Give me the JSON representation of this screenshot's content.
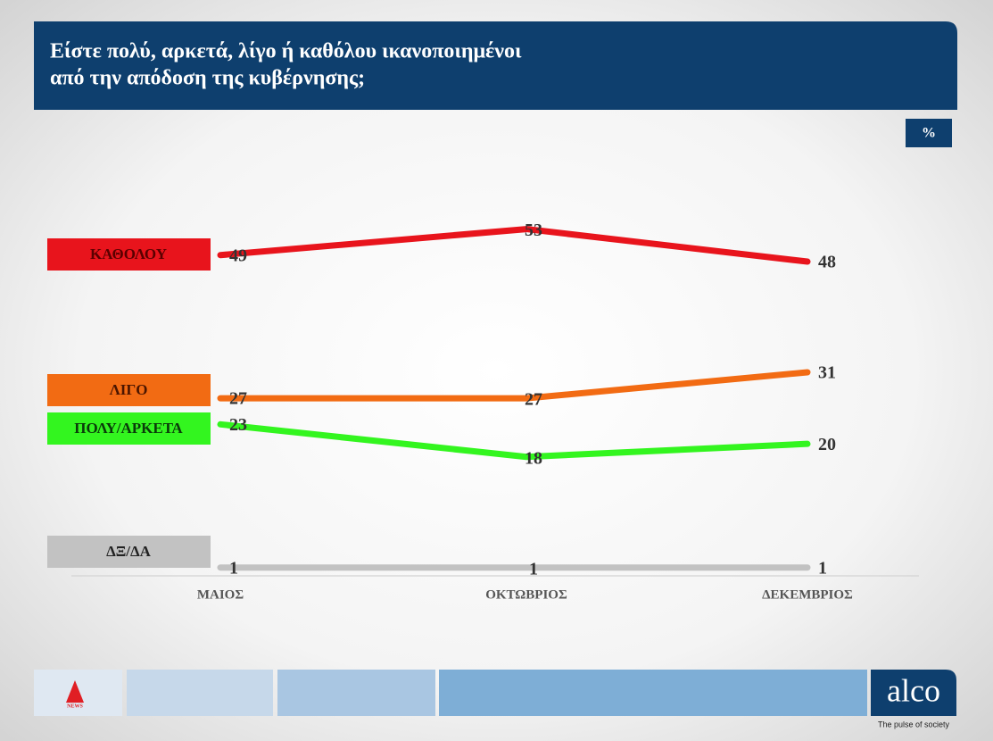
{
  "chart_data": {
    "type": "line",
    "title": [
      "Είστε πολύ, αρκετά, λίγο ή καθόλου ικανοποιημένοι",
      "από την απόδοση της κυβέρνησης;"
    ],
    "unit": "%",
    "categories": [
      "ΜΑΙΟΣ",
      "ΟΚΤΩΒΡΙΟΣ",
      "ΔΕΚΕΜΒΡΙΟΣ"
    ],
    "series": [
      {
        "name": "ΚΑΘΟΛΟΥ",
        "color": "#e8141c",
        "values": [
          49,
          53,
          48
        ]
      },
      {
        "name": "ΛΙΓΟ",
        "color": "#f26b13",
        "values": [
          27,
          27,
          31
        ]
      },
      {
        "name": "ΠΟΛΥ/ΑΡΚΕΤΑ",
        "color": "#33f51f",
        "values": [
          23,
          18,
          20
        ]
      },
      {
        "name": "ΔΞ/ΔΑ",
        "color": "#c2c2c2",
        "values": [
          1,
          1,
          1
        ]
      }
    ],
    "ylim": [
      0,
      55
    ]
  },
  "footer": {
    "brand": "alco",
    "tagline": "The pulse of society",
    "logo": "NEWS"
  }
}
